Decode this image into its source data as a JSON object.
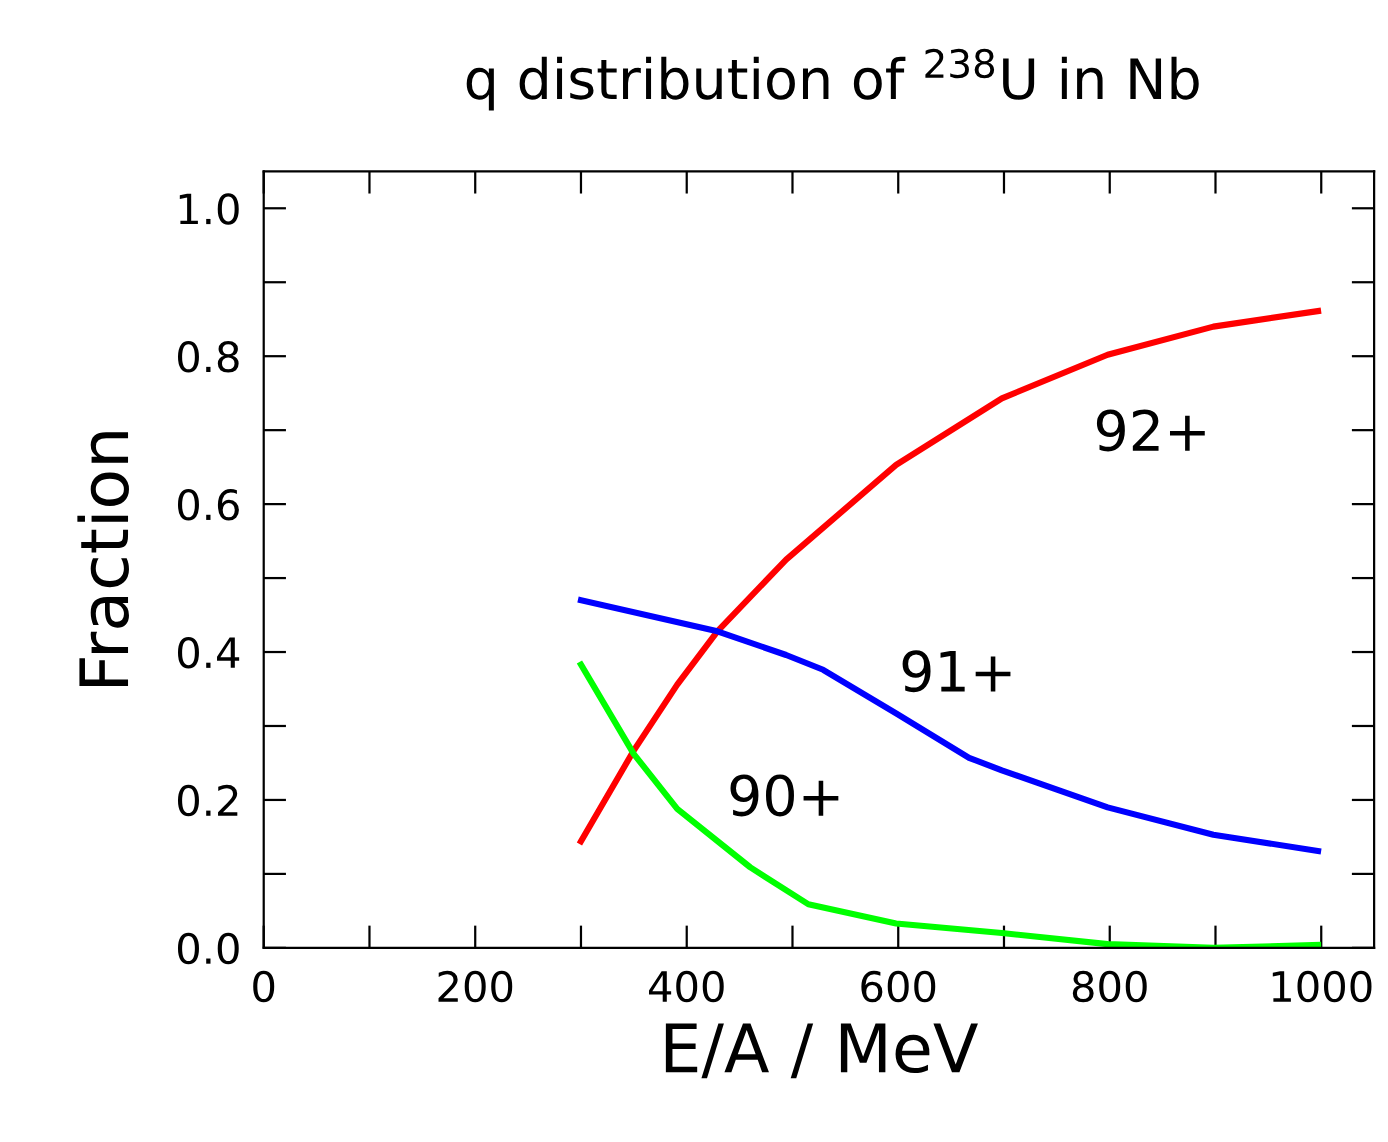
{
  "chart_data": {
    "type": "line",
    "title": "q distribution of $^{238}$U in Nb",
    "xlabel": "E/A / MeV",
    "ylabel": "Fraction",
    "series": [
      {
        "name": "92+",
        "color": "#ff0000",
        "x": [
          300,
          350,
          391,
          429,
          494,
          598,
          698,
          798,
          898,
          997
        ],
        "values": [
          0.144,
          0.267,
          0.356,
          0.428,
          0.525,
          0.653,
          0.743,
          0.802,
          0.84,
          0.861
        ]
      },
      {
        "name": "91+",
        "color": "#0000ff",
        "x": [
          300,
          429,
          494,
          529,
          598,
          667,
          698,
          798,
          898,
          997
        ],
        "values": [
          0.47,
          0.428,
          0.396,
          0.376,
          0.317,
          0.257,
          0.24,
          0.19,
          0.153,
          0.131
        ]
      },
      {
        "name": "90+",
        "color": "#00ff00",
        "x": [
          300,
          350,
          391,
          460,
          515,
          598,
          698,
          798,
          898,
          997
        ],
        "values": [
          0.383,
          0.262,
          0.188,
          0.109,
          0.059,
          0.033,
          0.02,
          0.005,
          0.0,
          0.004
        ]
      }
    ],
    "xlim": [
      0,
      1050
    ],
    "ylim": [
      0,
      1.05
    ],
    "xticks": [
      0,
      {
        "value": 100,
        "label": null
      },
      200,
      {
        "value": 300,
        "label": null
      },
      400,
      {
        "value": 500,
        "label": null
      },
      600,
      {
        "value": 700,
        "label": null
      },
      800,
      {
        "value": 900,
        "label": null
      },
      1000
    ],
    "yticks": [
      {
        "value": 0,
        "label": "0.0"
      },
      {
        "value": 0.1,
        "label": null
      },
      0.2,
      {
        "value": 0.3,
        "label": null
      },
      0.4,
      {
        "value": 0.5,
        "label": null
      },
      0.6,
      {
        "value": 0.7,
        "label": null
      },
      0.8,
      {
        "value": 0.9,
        "label": null
      },
      {
        "value": 1.0,
        "label": "1.0"
      }
    ],
    "grid": false,
    "legend": false
  }
}
